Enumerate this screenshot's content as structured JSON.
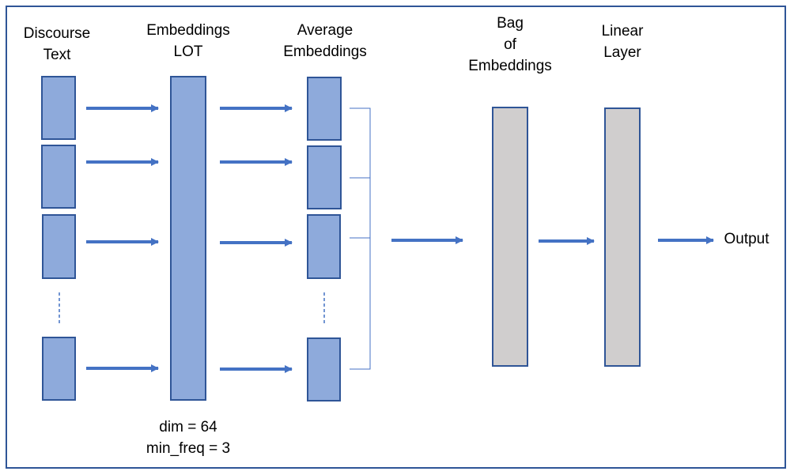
{
  "labels": {
    "discourse_text": [
      "Discourse",
      "Text"
    ],
    "embeddings_lot": [
      "Embeddings",
      "LOT"
    ],
    "average_embeddings": [
      "Average",
      "Embeddings"
    ],
    "bag_of_embeddings": [
      "Bag",
      "of",
      "Embeddings"
    ],
    "linear_layer": [
      "Linear",
      "Layer"
    ],
    "output": "Output",
    "dim": "dim = 64",
    "min_freq": "min_freq = 3"
  },
  "colors": {
    "blue_fill": "#8eaadb",
    "grey_fill": "#d0cece",
    "stroke": "#2f5597",
    "arrow": "#4472c4"
  }
}
